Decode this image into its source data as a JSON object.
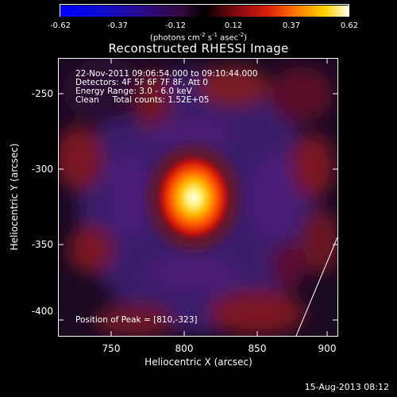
{
  "colorbar": {
    "ticks": [
      "-0.62",
      "-0.37",
      "-0.12",
      "0.12",
      "0.37",
      "0.62"
    ],
    "unit_parts": [
      "(photons cm",
      "-2",
      " s",
      "-1",
      " asec",
      "-2",
      ")"
    ]
  },
  "title": "Reconstructed RHESSI Image",
  "annotation": {
    "time": "22-Nov-2011 09:06:54.000 to 09:10:44.000",
    "detectors": "Detectors: 4F 5F 6F 7F 8F, Att 0",
    "energy": "Energy Range: 3.0 - 6.0 keV",
    "clean": "Clean     Total counts: 1.52E+05",
    "peak": "Position of Peak = [810,-323]"
  },
  "axes": {
    "xlabel": "Heliocentric X (arcsec)",
    "ylabel": "Heliocentric Y (arcsec)",
    "xticks": [
      "750",
      "800",
      "850",
      "900"
    ],
    "yticks": [
      "-250",
      "-300",
      "-350",
      "-400"
    ]
  },
  "timestamp": "15-Aug-2013 08:12",
  "colors": {
    "background": "#000000",
    "axes": "#ffffff"
  }
}
